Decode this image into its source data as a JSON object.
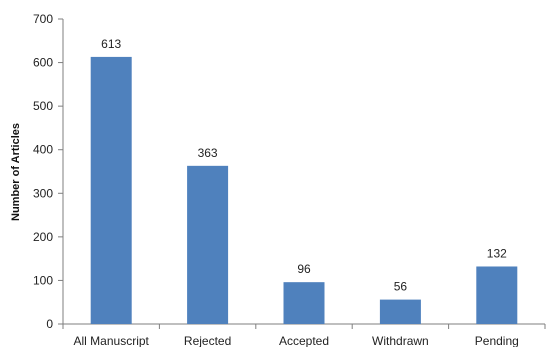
{
  "chart_data": {
    "type": "bar",
    "title": "",
    "xlabel": "",
    "ylabel": "Number of Articles",
    "categories": [
      "All Manuscript",
      "Rejected",
      "Accepted",
      "Withdrawn",
      "Pending"
    ],
    "values": [
      613,
      363,
      96,
      56,
      132
    ],
    "data_labels": [
      "613",
      "363",
      "96",
      "56",
      "132"
    ],
    "ylim": [
      0,
      700
    ],
    "yticks": [
      0,
      100,
      200,
      300,
      400,
      500,
      600,
      700
    ],
    "ytick_labels": [
      "0",
      "100",
      "200",
      "300",
      "400",
      "500",
      "600",
      "700"
    ],
    "grid": false,
    "legend": "none",
    "bar_color": "#4F81BD"
  }
}
